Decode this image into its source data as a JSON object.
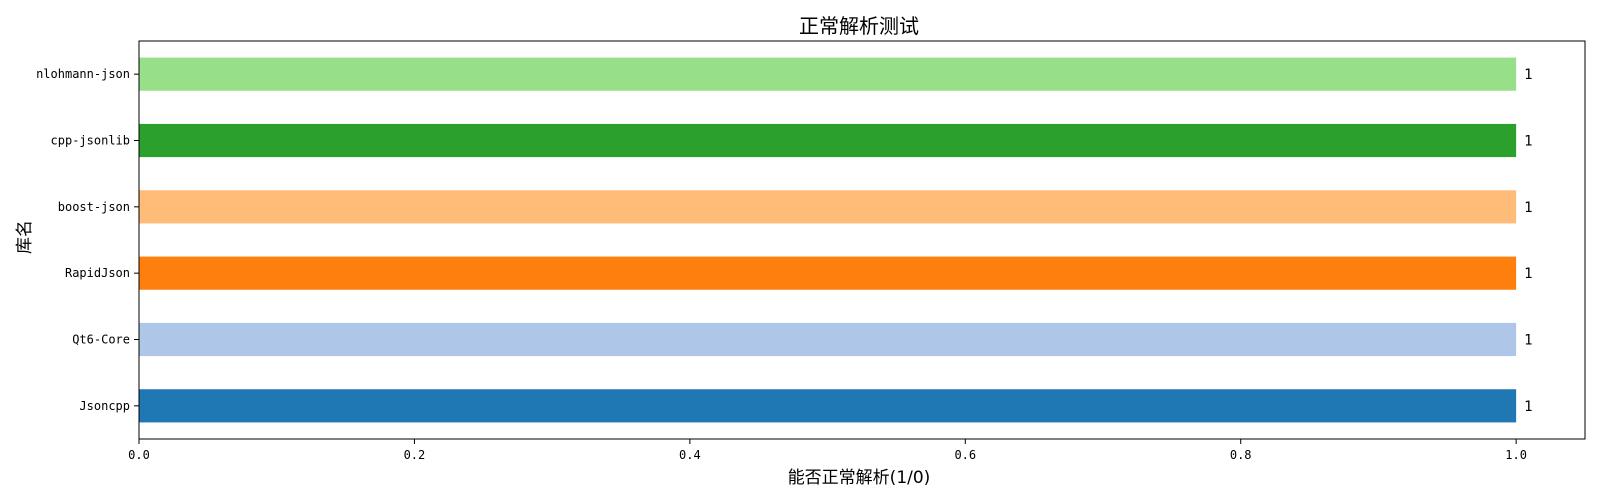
{
  "chart_data": {
    "type": "bar",
    "orientation": "horizontal",
    "title": "正常解析测试",
    "xlabel": "能否正常解析(1/0)",
    "ylabel": "库名",
    "xlim": [
      0,
      1.05
    ],
    "xticks": [
      "0.0",
      "0.2",
      "0.4",
      "0.6",
      "0.8",
      "1.0"
    ],
    "xtick_values": [
      0,
      0.2,
      0.4,
      0.6,
      0.8,
      1.0
    ],
    "grid": false,
    "categories": [
      "Jsoncpp",
      "Qt6-Core",
      "RapidJson",
      "boost-json",
      "cpp-jsonlib",
      "nlohmann-json"
    ],
    "values": [
      1,
      1,
      1,
      1,
      1,
      1
    ],
    "data_labels": [
      "1",
      "1",
      "1",
      "1",
      "1",
      "1"
    ],
    "colors": [
      "#1f77b4",
      "#aec7e8",
      "#ff7f0e",
      "#ffbb78",
      "#2ca02c",
      "#98df8a"
    ]
  }
}
